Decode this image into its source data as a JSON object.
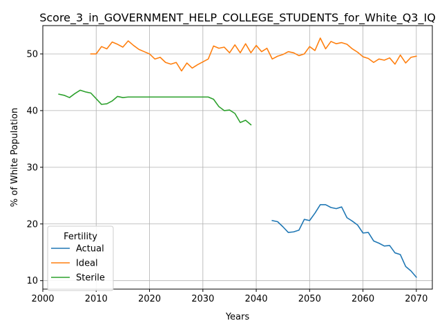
{
  "chart_data": {
    "type": "line",
    "title": "Score_3_in_GOVERNMENT_HELP_COLLEGE_STUDENTS_for_White_Q3_IQ",
    "xlabel": "Years",
    "ylabel": "% of White Population",
    "xlim": [
      2000,
      2073
    ],
    "ylim": [
      8.5,
      55
    ],
    "xticks": [
      2000,
      2010,
      2020,
      2030,
      2040,
      2050,
      2060,
      2070
    ],
    "yticks": [
      10,
      20,
      30,
      40,
      50
    ],
    "grid": true,
    "legend": {
      "title": "Fertility",
      "placement": "lower-left"
    },
    "series": [
      {
        "name": "Actual",
        "color": "#1f77b4",
        "x": [
          2043,
          2044,
          2045,
          2046,
          2047,
          2048,
          2049,
          2050,
          2051,
          2052,
          2053,
          2054,
          2055,
          2056,
          2057,
          2058,
          2059,
          2060,
          2061,
          2062,
          2063,
          2064,
          2065,
          2066,
          2067,
          2068,
          2069,
          2070
        ],
        "values": [
          20.6,
          20.4,
          19.5,
          18.5,
          18.6,
          18.9,
          20.8,
          20.6,
          21.9,
          23.4,
          23.4,
          22.9,
          22.7,
          23.0,
          21.1,
          20.5,
          19.8,
          18.4,
          18.5,
          17.0,
          16.6,
          16.1,
          16.2,
          14.9,
          14.6,
          12.5,
          11.7,
          10.6
        ]
      },
      {
        "name": "Ideal",
        "color": "#ff7f0e",
        "x": [
          2009,
          2010,
          2011,
          2012,
          2013,
          2014,
          2015,
          2016,
          2017,
          2018,
          2019,
          2020,
          2021,
          2022,
          2023,
          2024,
          2025,
          2026,
          2027,
          2028,
          2029,
          2030,
          2031,
          2032,
          2033,
          2034,
          2035,
          2036,
          2037,
          2038,
          2039,
          2040,
          2041,
          2042,
          2043,
          2044,
          2045,
          2046,
          2047,
          2048,
          2049,
          2050,
          2051,
          2052,
          2053,
          2054,
          2055,
          2056,
          2057,
          2058,
          2059,
          2060,
          2061,
          2062,
          2063,
          2064,
          2065,
          2066,
          2067,
          2068,
          2069,
          2070
        ],
        "values": [
          50.0,
          50.0,
          51.3,
          50.9,
          52.1,
          51.7,
          51.2,
          52.3,
          51.5,
          50.8,
          50.4,
          50.0,
          49.1,
          49.4,
          48.5,
          48.2,
          48.5,
          47.0,
          48.4,
          47.5,
          48.1,
          48.6,
          49.1,
          51.4,
          51.0,
          51.2,
          50.2,
          51.6,
          50.2,
          51.8,
          50.2,
          51.5,
          50.4,
          51.0,
          49.1,
          49.6,
          49.9,
          50.4,
          50.2,
          49.7,
          50.0,
          51.3,
          50.6,
          52.8,
          50.9,
          52.2,
          51.8,
          52.0,
          51.7,
          50.9,
          50.3,
          49.5,
          49.2,
          48.5,
          49.1,
          48.9,
          49.3,
          48.2,
          49.8,
          48.4,
          49.4,
          49.6
        ]
      },
      {
        "name": "Sterile",
        "color": "#2ca02c",
        "x": [
          2003,
          2004,
          2005,
          2006,
          2007,
          2008,
          2009,
          2010,
          2011,
          2012,
          2013,
          2014,
          2015,
          2016,
          2017,
          2018,
          2019,
          2020,
          2021,
          2022,
          2023,
          2024,
          2025,
          2026,
          2027,
          2028,
          2029,
          2030,
          2031,
          2032,
          2033,
          2034,
          2035,
          2036,
          2037,
          2038,
          2039
        ],
        "values": [
          42.9,
          42.7,
          42.3,
          43.0,
          43.6,
          43.3,
          43.1,
          42.1,
          41.1,
          41.2,
          41.7,
          42.5,
          42.3,
          42.4,
          42.4,
          42.4,
          42.4,
          42.4,
          42.4,
          42.4,
          42.4,
          42.4,
          42.4,
          42.4,
          42.4,
          42.4,
          42.4,
          42.4,
          42.4,
          42.0,
          40.7,
          40.0,
          40.1,
          39.5,
          37.9,
          38.3,
          37.5
        ]
      }
    ]
  }
}
